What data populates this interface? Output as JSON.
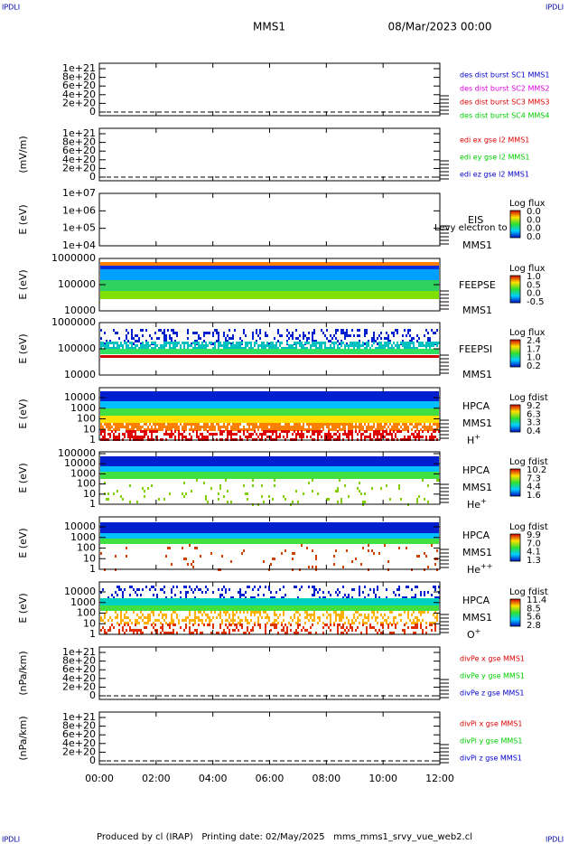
{
  "corner_label": "IPDLI",
  "header": {
    "mission": "MMS1",
    "date": "08/Mar/2023 00:00"
  },
  "panels": [
    {
      "yticks": [
        "1e+21",
        "8e+20",
        "6e+20",
        "4e+20",
        "2e+20",
        "0"
      ],
      "legend": [
        {
          "text": "des dist burst SC1 MMS1",
          "color": "#0000cc"
        },
        {
          "text": "des dist burst SC2 MMS2",
          "color": "#dd00dd"
        },
        {
          "text": "des dist burst SC3 MMS3",
          "color": "#dd0000"
        },
        {
          "text": "des dist burst SC4 MMS4",
          "color": "#00cc00"
        }
      ]
    },
    {
      "ylabel": "(mV/m)",
      "yticks": [
        "1e+21",
        "8e+20",
        "6e+20",
        "4e+20",
        "2e+20",
        "0"
      ],
      "legend": [
        {
          "text": "edi ex gse l2 MMS1",
          "color": "#dd0000"
        },
        {
          "text": "edi ey gse l2 MMS1",
          "color": "#00cc00"
        },
        {
          "text": "edi ez gse l2 MMS1",
          "color": "#0000cc"
        }
      ]
    },
    {
      "ylabel": "E (eV)",
      "yticks": [
        "1e+07",
        "1e+06",
        "1e+05",
        "1e+04"
      ],
      "instrument": "EIS",
      "mission": "MMS1",
      "note": "Levy electron to",
      "cb_title": "Log flux",
      "cb_ticks": [
        "0.0",
        "0.0",
        "0.0",
        "0.0"
      ]
    },
    {
      "ylabel": "E (eV)",
      "yticks": [
        "1000000",
        "100000",
        "10000"
      ],
      "instrument": "FEEPSE",
      "mission": "MMS1",
      "cb_title": "Log flux",
      "cb_ticks": [
        "1.0",
        "0.5",
        "0.0",
        "-0.5"
      ]
    },
    {
      "ylabel": "E (eV)",
      "yticks": [
        "1000000",
        "100000",
        "10000"
      ],
      "instrument": "FEEPSI",
      "mission": "MMS1",
      "cb_title": "Log flux",
      "cb_ticks": [
        "2.4",
        "1.7",
        "1.0",
        "0.2"
      ]
    },
    {
      "ylabel": "E (eV)",
      "yticks": [
        "10000",
        "1000",
        "100",
        "10",
        "1"
      ],
      "instrument": "HPCA",
      "mission": "MMS1",
      "species": {
        "base": "H",
        "sup": "+"
      },
      "cb_title": "Log fdist",
      "cb_ticks": [
        "9.2",
        "6.3",
        "3.3",
        "0.4"
      ]
    },
    {
      "ylabel": "E (eV)",
      "yticks": [
        "100000",
        "10000",
        "1000",
        "100",
        "10",
        "1"
      ],
      "instrument": "HPCA",
      "mission": "MMS1",
      "species": {
        "base": "He",
        "sup": "+"
      },
      "cb_title": "Log fdist",
      "cb_ticks": [
        "10.2",
        "7.3",
        "4.4",
        "1.6"
      ]
    },
    {
      "ylabel": "E (eV)",
      "yticks": [
        "10000",
        "1000",
        "100",
        "10",
        "1"
      ],
      "instrument": "HPCA",
      "mission": "MMS1",
      "species": {
        "base": "He",
        "sup": "++"
      },
      "cb_title": "Log fdist",
      "cb_ticks": [
        "9.9",
        "7.0",
        "4.1",
        "1.3"
      ]
    },
    {
      "ylabel": "E (eV)",
      "yticks": [
        "10000",
        "1000",
        "100",
        "10",
        "1"
      ],
      "instrument": "HPCA",
      "mission": "MMS1",
      "species": {
        "base": "O",
        "sup": "+"
      },
      "cb_title": "Log fdist",
      "cb_ticks": [
        "11.4",
        "8.5",
        "5.6",
        "2.8"
      ]
    },
    {
      "ylabel": "(nPa/km)",
      "yticks": [
        "1e+21",
        "8e+20",
        "6e+20",
        "4e+20",
        "2e+20",
        "0"
      ],
      "legend": [
        {
          "text": "divPe x gse MMS1",
          "color": "#dd0000"
        },
        {
          "text": "divPe y gse MMS1",
          "color": "#00cc00"
        },
        {
          "text": "divPe z gse MMS1",
          "color": "#0000cc"
        }
      ]
    },
    {
      "ylabel": "(nPa/km)",
      "yticks": [
        "1e+21",
        "8e+20",
        "6e+20",
        "4e+20",
        "2e+20",
        "0"
      ],
      "legend": [
        {
          "text": "divPi x gse MMS1",
          "color": "#dd0000"
        },
        {
          "text": "divPi y gse MMS1",
          "color": "#00cc00"
        },
        {
          "text": "divPi z gse MMS1",
          "color": "#0000cc"
        }
      ]
    }
  ],
  "xticks": [
    "00:00",
    "02:00",
    "04:00",
    "06:00",
    "08:00",
    "10:00",
    "12:00"
  ],
  "footer": "Produced by cl (IRAP)   Printing date: 02/May/2025   mms_mms1_srvy_vue_web2.cl"
}
